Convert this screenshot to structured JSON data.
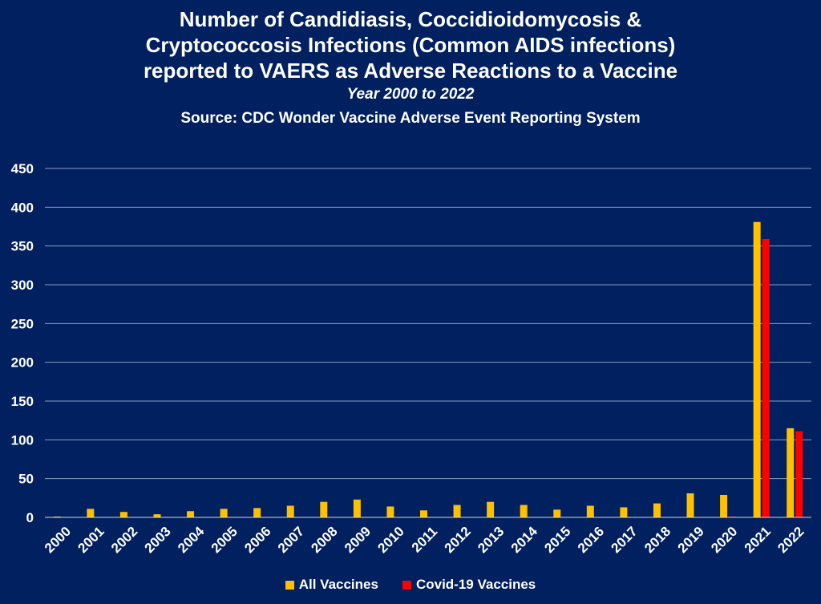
{
  "chart_data": {
    "type": "bar",
    "title_lines": [
      "Number of Candidiasis, Coccidioidomycosis &",
      "Cryptococcosis Infections (Common AIDS infections)",
      "reported to VAERS as Adverse Reactions to a Vaccine"
    ],
    "subtitle": "Year 2000 to 2022",
    "source": "Source: CDC Wonder Vaccine Adverse Event Reporting System",
    "categories": [
      "2000",
      "2001",
      "2002",
      "2003",
      "2004",
      "2005",
      "2006",
      "2007",
      "2008",
      "2009",
      "2010",
      "2011",
      "2012",
      "2013",
      "2014",
      "2015",
      "2016",
      "2017",
      "2018",
      "2019",
      "2020",
      "2021",
      "2022"
    ],
    "series": [
      {
        "name": "All Vaccines",
        "color": "#ffc000",
        "values": [
          1,
          11,
          7,
          4,
          8,
          11,
          12,
          15,
          20,
          23,
          14,
          9,
          16,
          20,
          16,
          10,
          15,
          13,
          18,
          31,
          29,
          381,
          115
        ]
      },
      {
        "name": "Covid-19 Vaccines",
        "color": "#ff0000",
        "values": [
          0,
          0,
          0,
          0,
          0,
          0,
          0,
          0,
          0,
          0,
          0,
          0,
          0,
          0,
          0,
          0,
          0,
          0,
          0,
          0,
          1,
          359,
          111
        ]
      }
    ],
    "ylim": [
      0,
      450
    ],
    "yticks": [
      0,
      50,
      100,
      150,
      200,
      250,
      300,
      350,
      400,
      450
    ],
    "grid": true,
    "legend_position": "bottom"
  }
}
